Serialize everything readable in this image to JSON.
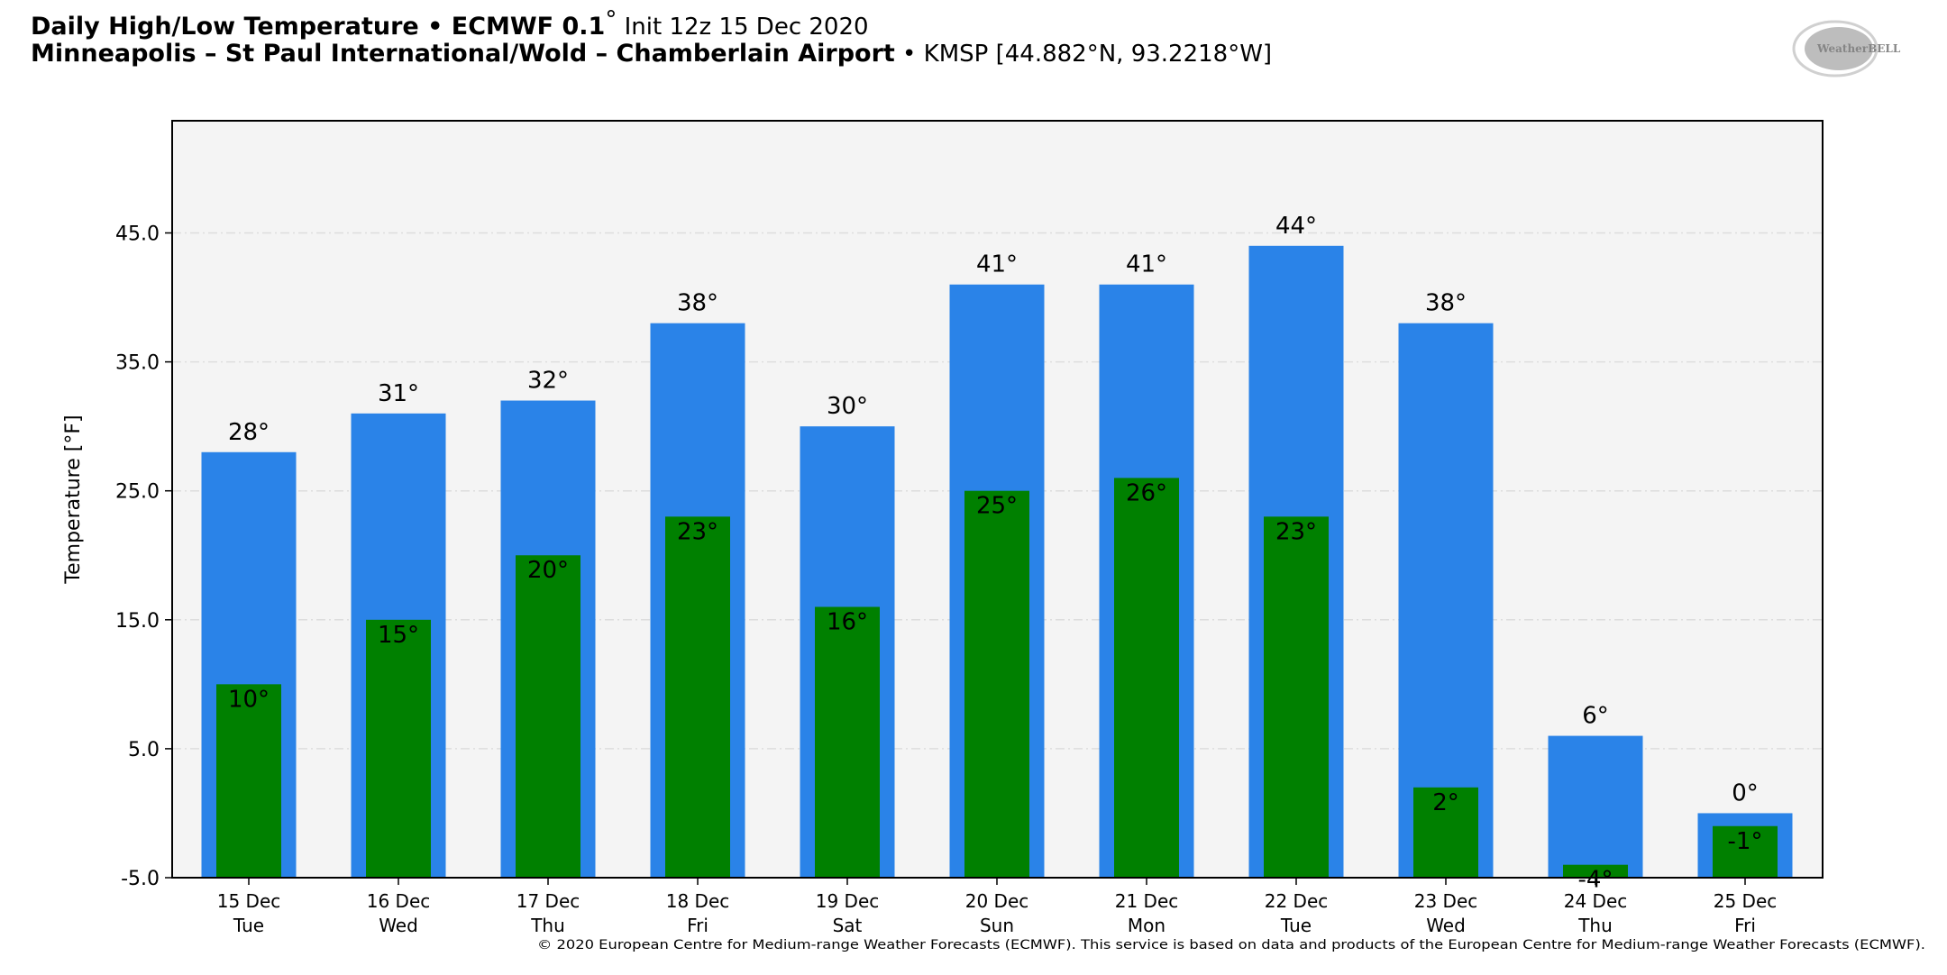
{
  "header": {
    "title_bold": "Daily High/Low Temperature • ECMWF 0.1",
    "title_degree": "°",
    "title_init": " Init 12z 15 Dec 2020",
    "subtitle_bold": "Minneapolis – St Paul International/Wold – Chamberlain Airport",
    "subtitle_rest": " • KMSP [44.882°N, 93.2218°W]",
    "logo_text": "WeatherBELL"
  },
  "footer": "© 2020 European Centre for Medium-range Weather Forecasts (ECMWF). This service is based on data and products of the European Centre for Medium-range Weather Forecasts (ECMWF).",
  "colors": {
    "high": "#2a83e8",
    "low": "#008000",
    "plot_bg": "#f4f4f4",
    "grid": "#dddddd"
  },
  "chart_data": {
    "type": "bar",
    "title": "Daily High/Low Temperature",
    "xlabel": "",
    "ylabel": "Temperature [°F]",
    "ylim": [
      -5,
      53.7
    ],
    "yticks": [
      -5.0,
      5.0,
      15.0,
      25.0,
      35.0,
      45.0
    ],
    "ytick_labels": [
      "-5.0",
      "5.0",
      "15.0",
      "25.0",
      "35.0",
      "45.0"
    ],
    "grid": true,
    "categories": [
      [
        "15 Dec",
        "Tue"
      ],
      [
        "16 Dec",
        "Wed"
      ],
      [
        "17 Dec",
        "Thu"
      ],
      [
        "18 Dec",
        "Fri"
      ],
      [
        "19 Dec",
        "Sat"
      ],
      [
        "20 Dec",
        "Sun"
      ],
      [
        "21 Dec",
        "Mon"
      ],
      [
        "22 Dec",
        "Tue"
      ],
      [
        "23 Dec",
        "Wed"
      ],
      [
        "24 Dec",
        "Thu"
      ],
      [
        "25 Dec",
        "Fri"
      ]
    ],
    "series": [
      {
        "name": "High",
        "values": [
          28,
          31,
          32,
          38,
          30,
          41,
          41,
          44,
          38,
          6,
          0
        ]
      },
      {
        "name": "Low",
        "values": [
          10,
          15,
          20,
          23,
          16,
          25,
          26,
          23,
          2,
          -4,
          -1
        ]
      }
    ],
    "label_suffix": "°"
  }
}
